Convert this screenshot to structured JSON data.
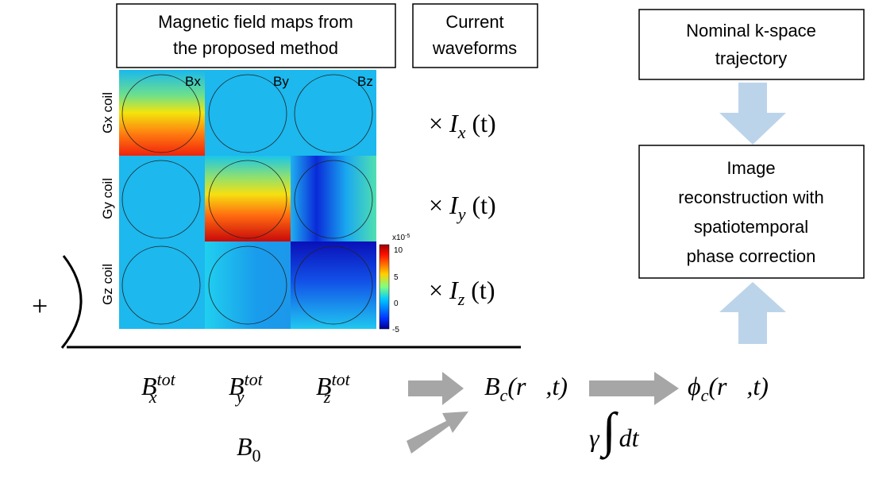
{
  "boxes": {
    "field_maps": [
      "Magnetic field maps from",
      "the proposed method"
    ],
    "current_waveforms": [
      "Current",
      "waveforms"
    ],
    "nominal": [
      "Nominal k-space",
      "trajectory"
    ],
    "recon": [
      "Image",
      "reconstruction with",
      "spatiotemporal",
      "phase correction"
    ]
  },
  "columns": [
    "Bx",
    "By",
    "Bz"
  ],
  "rows": [
    "Gx coil",
    "Gy coil",
    "Gz coil"
  ],
  "colorbar": {
    "base": "x10",
    "exponent": "-5",
    "ticks": [
      "10",
      "5",
      "0",
      "-5"
    ]
  },
  "currents": [
    {
      "symbol": "×",
      "var": "I",
      "sub": "x",
      "arg": "(t)"
    },
    {
      "symbol": "×",
      "var": "I",
      "sub": "y",
      "arg": "(t)"
    },
    {
      "symbol": "×",
      "var": "I",
      "sub": "z",
      "arg": "(t)"
    }
  ],
  "plus": "+",
  "b_tot": [
    {
      "base": "B",
      "sub": "x",
      "sup": "tot"
    },
    {
      "base": "B",
      "sub": "y",
      "sup": "tot"
    },
    {
      "base": "B",
      "sub": "z",
      "sup": "tot"
    }
  ],
  "b0": {
    "base": "B",
    "sub": "0"
  },
  "bc": {
    "base": "B",
    "sub": "c",
    "arg": "(r⃗,t)"
  },
  "phi": {
    "base": "ϕ",
    "sub": "c",
    "arg": "(r⃗,t)"
  },
  "integral": {
    "gamma": "γ",
    "sign": "∫",
    "dt": "dt"
  }
}
